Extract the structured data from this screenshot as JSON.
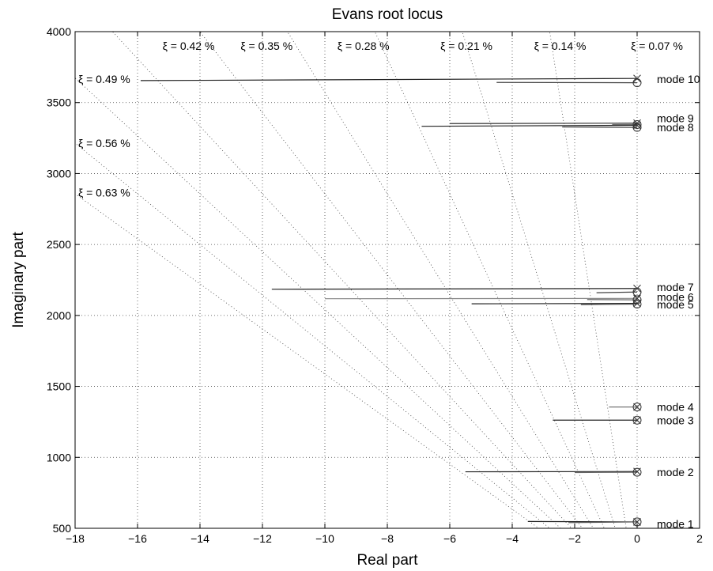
{
  "chart_data": {
    "type": "line",
    "title": "Evans root locus",
    "xlabel": "Real part",
    "ylabel": "Imaginary part",
    "xlim": [
      -18,
      2
    ],
    "ylim": [
      500,
      4000
    ],
    "xticks": [
      -18,
      -16,
      -14,
      -12,
      -10,
      -8,
      -6,
      -4,
      -2,
      0,
      2
    ],
    "xtick_labels": [
      "−18",
      "−16",
      "−14",
      "−12",
      "−10",
      "−8",
      "−6",
      "−4",
      "−2",
      "0",
      "2"
    ],
    "yticks": [
      500,
      1000,
      1500,
      2000,
      2500,
      3000,
      3500,
      4000
    ],
    "ytick_labels": [
      "500",
      "1000",
      "1500",
      "2000",
      "2500",
      "3000",
      "3500",
      "4000"
    ],
    "grid": true,
    "damping_lines": [
      {
        "label": "ξ = 0.07 %",
        "zeta": 0.0007,
        "label_pos": [
          -0.2,
          3900
        ]
      },
      {
        "label": "ξ = 0.14 %",
        "zeta": 0.0014,
        "label_pos": [
          -3.3,
          3900
        ]
      },
      {
        "label": "ξ = 0.21 %",
        "zeta": 0.0021,
        "label_pos": [
          -6.3,
          3900
        ]
      },
      {
        "label": "ξ = 0.28 %",
        "zeta": 0.0028,
        "label_pos": [
          -9.6,
          3900
        ]
      },
      {
        "label": "ξ = 0.35 %",
        "zeta": 0.0035,
        "label_pos": [
          -12.7,
          3900
        ]
      },
      {
        "label": "ξ = 0.42 %",
        "zeta": 0.0042,
        "label_pos": [
          -15.2,
          3900
        ]
      },
      {
        "label": "ξ = 0.49 %",
        "zeta": 0.0049,
        "label_pos": [
          -17.9,
          3665
        ]
      },
      {
        "label": "ξ = 0.56 %",
        "zeta": 0.0056,
        "label_pos": [
          -17.9,
          3215
        ]
      },
      {
        "label": "ξ = 0.63 %",
        "zeta": 0.0063,
        "label_pos": [
          -17.9,
          2865
        ]
      }
    ],
    "modes": [
      {
        "label": "mode 1",
        "label_y": 530,
        "pole": [
          0,
          545
        ],
        "zero": [
          0,
          545
        ],
        "branches": [
          {
            "from": [
              0,
              545
            ],
            "to": [
              -3.5,
              548
            ],
            "color": "#222222"
          },
          {
            "from": [
              0,
              545
            ],
            "to": [
              -2.2,
              540
            ],
            "color": "#555555"
          }
        ]
      },
      {
        "label": "mode 2",
        "label_y": 895,
        "pole": [
          0,
          900
        ],
        "zero": [
          0,
          895
        ],
        "branches": [
          {
            "from": [
              0,
              900
            ],
            "to": [
              -5.5,
              898
            ],
            "color": "#222222"
          },
          {
            "from": [
              0,
              895
            ],
            "to": [
              -2.0,
              893
            ],
            "color": "#666666"
          }
        ]
      },
      {
        "label": "mode 3",
        "label_y": 1262,
        "pole": [
          0,
          1262
        ],
        "zero": [
          0,
          1262
        ],
        "branches": [
          {
            "from": [
              0,
              1262
            ],
            "to": [
              -2.7,
              1262
            ],
            "color": "#222222"
          }
        ]
      },
      {
        "label": "mode 4",
        "label_y": 1355,
        "pole": [
          0,
          1355
        ],
        "zero": [
          0,
          1355
        ],
        "branches": [
          {
            "from": [
              0,
              1355
            ],
            "to": [
              -0.9,
              1355
            ],
            "color": "#777777"
          }
        ]
      },
      {
        "label": "mode 5",
        "label_y": 2078,
        "pole": [
          0,
          2085
        ],
        "zero": [
          0,
          2080
        ],
        "branches": [
          {
            "from": [
              0,
              2085
            ],
            "to": [
              -5.3,
              2082
            ],
            "color": "#222222"
          },
          {
            "from": [
              0,
              2080
            ],
            "to": [
              -1.8,
              2076
            ],
            "color": "#555555"
          }
        ]
      },
      {
        "label": "mode 6",
        "label_y": 2130,
        "pole": [
          0,
          2120
        ],
        "zero": [
          0,
          2110
        ],
        "branches": [
          {
            "from": [
              0,
              2120
            ],
            "to": [
              -10.0,
              2118
            ],
            "color": "#888888"
          },
          {
            "from": [
              0,
              2110
            ],
            "to": [
              -1.6,
              2112
            ],
            "color": "#666666"
          }
        ]
      },
      {
        "label": "mode 7",
        "label_y": 2200,
        "pole": [
          0,
          2190
        ],
        "zero": [
          0,
          2165
        ],
        "branches": [
          {
            "from": [
              0,
              2190
            ],
            "to": [
              -11.7,
              2185
            ],
            "color": "#222222"
          },
          {
            "from": [
              0,
              2165
            ],
            "to": [
              -1.3,
              2160
            ],
            "color": "#444444"
          }
        ]
      },
      {
        "label": "mode 8",
        "label_y": 3325,
        "pole": [
          0,
          3340
        ],
        "zero": [
          0,
          3325
        ],
        "branches": [
          {
            "from": [
              0,
              3340
            ],
            "to": [
              -6.9,
              3333
            ],
            "color": "#222222"
          },
          {
            "from": [
              0,
              3325
            ],
            "to": [
              -2.4,
              3328
            ],
            "color": "#444444"
          }
        ]
      },
      {
        "label": "mode 9",
        "label_y": 3390,
        "pole": [
          0,
          3355
        ],
        "zero": [
          0,
          3345
        ],
        "branches": [
          {
            "from": [
              0,
              3355
            ],
            "to": [
              -6.0,
              3352
            ],
            "color": "#333333"
          },
          {
            "from": [
              0,
              3345
            ],
            "to": [
              -0.8,
              3345
            ],
            "color": "#666666"
          }
        ]
      },
      {
        "label": "mode 10",
        "label_y": 3665,
        "pole": [
          0,
          3670
        ],
        "zero": [
          0,
          3640
        ],
        "branches": [
          {
            "from": [
              0,
              3670
            ],
            "to": [
              -15.9,
              3655
            ],
            "color": "#222222"
          },
          {
            "from": [
              0,
              3640
            ],
            "to": [
              -4.5,
              3642
            ],
            "color": "#444444"
          }
        ]
      }
    ]
  }
}
